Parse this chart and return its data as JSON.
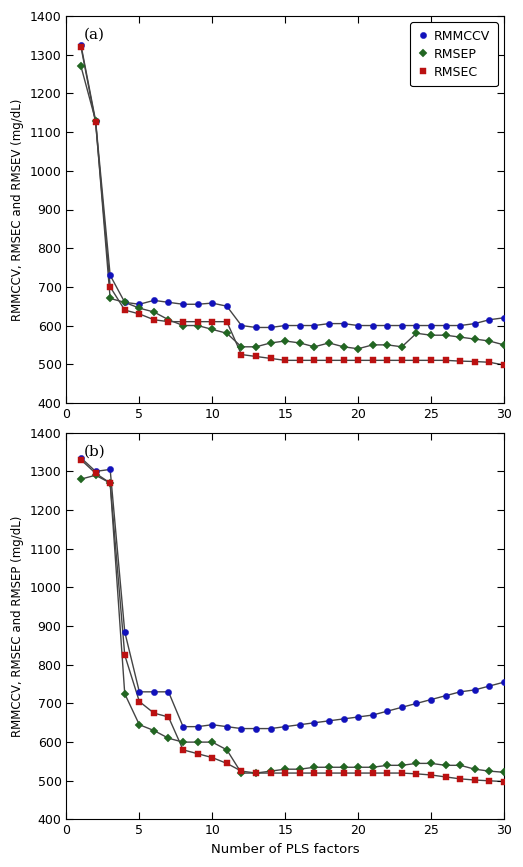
{
  "x": [
    1,
    2,
    3,
    4,
    5,
    6,
    7,
    8,
    9,
    10,
    11,
    12,
    13,
    14,
    15,
    16,
    17,
    18,
    19,
    20,
    21,
    22,
    23,
    24,
    25,
    26,
    27,
    28,
    29,
    30
  ],
  "a_rmmccv": [
    1325,
    1130,
    730,
    660,
    655,
    665,
    660,
    655,
    655,
    658,
    650,
    600,
    595,
    595,
    600,
    600,
    600,
    605,
    605,
    600,
    600,
    600,
    600,
    600,
    600,
    600,
    600,
    605,
    615,
    620
  ],
  "a_rmsep": [
    1270,
    1130,
    670,
    660,
    645,
    635,
    615,
    600,
    600,
    590,
    580,
    545,
    545,
    555,
    560,
    555,
    545,
    555,
    545,
    540,
    550,
    550,
    545,
    580,
    575,
    575,
    570,
    565,
    560,
    550
  ],
  "a_rmsec": [
    1320,
    1125,
    700,
    640,
    630,
    615,
    610,
    610,
    610,
    610,
    610,
    525,
    520,
    515,
    510,
    510,
    510,
    510,
    510,
    510,
    510,
    510,
    510,
    510,
    510,
    510,
    508,
    507,
    505,
    498
  ],
  "b_rmmccv": [
    1335,
    1300,
    1305,
    885,
    730,
    730,
    730,
    640,
    640,
    645,
    640,
    635,
    635,
    635,
    640,
    645,
    650,
    655,
    660,
    665,
    670,
    680,
    690,
    700,
    710,
    720,
    730,
    735,
    745,
    755
  ],
  "b_rmsep": [
    1280,
    1290,
    1270,
    725,
    645,
    630,
    610,
    600,
    600,
    600,
    580,
    520,
    520,
    525,
    530,
    530,
    535,
    535,
    535,
    535,
    535,
    540,
    540,
    545,
    545,
    540,
    540,
    530,
    525,
    522
  ],
  "b_rmsec": [
    1330,
    1295,
    1270,
    825,
    705,
    675,
    665,
    580,
    570,
    560,
    545,
    525,
    520,
    520,
    520,
    520,
    520,
    520,
    520,
    520,
    520,
    520,
    520,
    518,
    515,
    510,
    505,
    502,
    500,
    498
  ],
  "ylim": [
    400,
    1400
  ],
  "xlim": [
    0,
    30
  ],
  "yticks": [
    400,
    500,
    600,
    700,
    800,
    900,
    1000,
    1100,
    1200,
    1300,
    1400
  ],
  "xticks": [
    0,
    5,
    10,
    15,
    20,
    25,
    30
  ],
  "color_rmmccv": "#1111BB",
  "color_rmsep": "#226622",
  "color_rmsec": "#BB1111",
  "line_color": "#444444",
  "ylabel_a": "RMMCCV, RMSEC and RMSEV (mg/dL)",
  "ylabel_b": "RMMCCV, RMSEC and RMSEP (mg/dL)",
  "xlabel": "Number of PLS factors",
  "label_rmmccv": "RMMCCV",
  "label_rmsep": "RMSEP",
  "label_rmsec": "RMSEC",
  "panel_a": "(a)",
  "panel_b": "(b)"
}
